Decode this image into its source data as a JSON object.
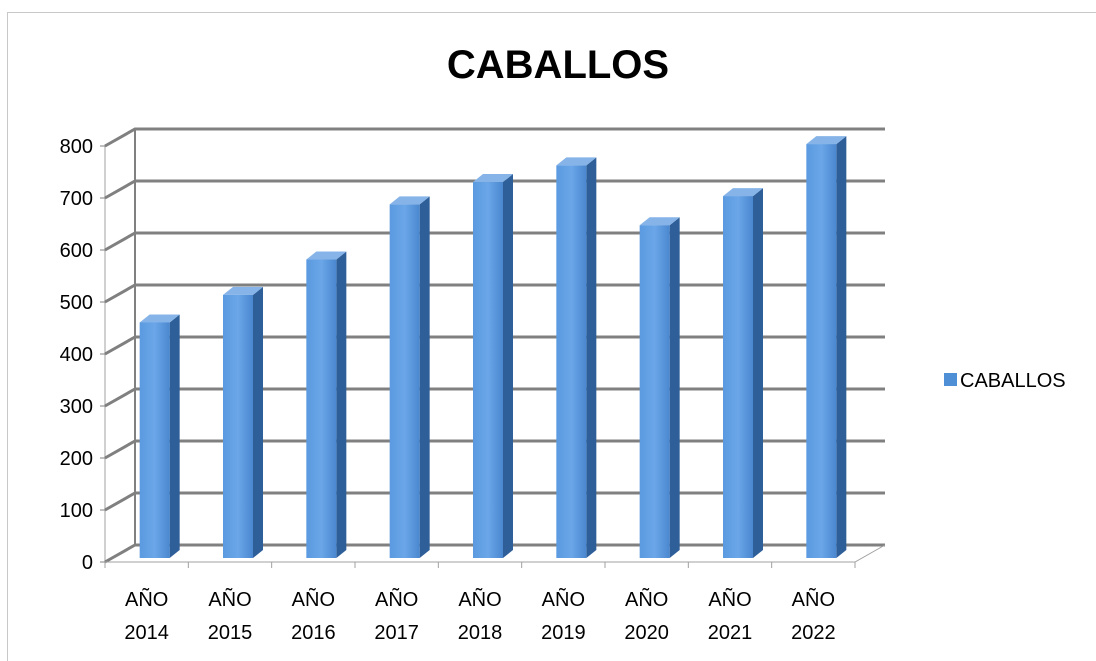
{
  "chart_data": {
    "type": "bar",
    "title": "CABALLOS",
    "categories": [
      [
        "AÑO",
        "2014"
      ],
      [
        "AÑO",
        "2015"
      ],
      [
        "AÑO",
        "2016"
      ],
      [
        "AÑO",
        "2017"
      ],
      [
        "AÑO",
        "2018"
      ],
      [
        "AÑO",
        "2019"
      ],
      [
        "AÑO",
        "2020"
      ],
      [
        "AÑO",
        "2021"
      ],
      [
        "AÑO",
        "2022"
      ]
    ],
    "series": [
      {
        "name": "CABALLOS",
        "values": [
          453,
          506,
          574,
          680,
          723,
          755,
          640,
          696,
          796
        ]
      }
    ],
    "ylim": [
      0,
      800
    ],
    "yticks": [
      "0",
      "100",
      "200",
      "300",
      "400",
      "500",
      "600",
      "700",
      "800"
    ],
    "grid": true,
    "legend_position": "right",
    "three_d": true,
    "colors": {
      "bar_front": "#4f8fd6",
      "bar_side": "#2f5f99",
      "bar_top": "#86b4e8",
      "grid": "#808080"
    }
  }
}
